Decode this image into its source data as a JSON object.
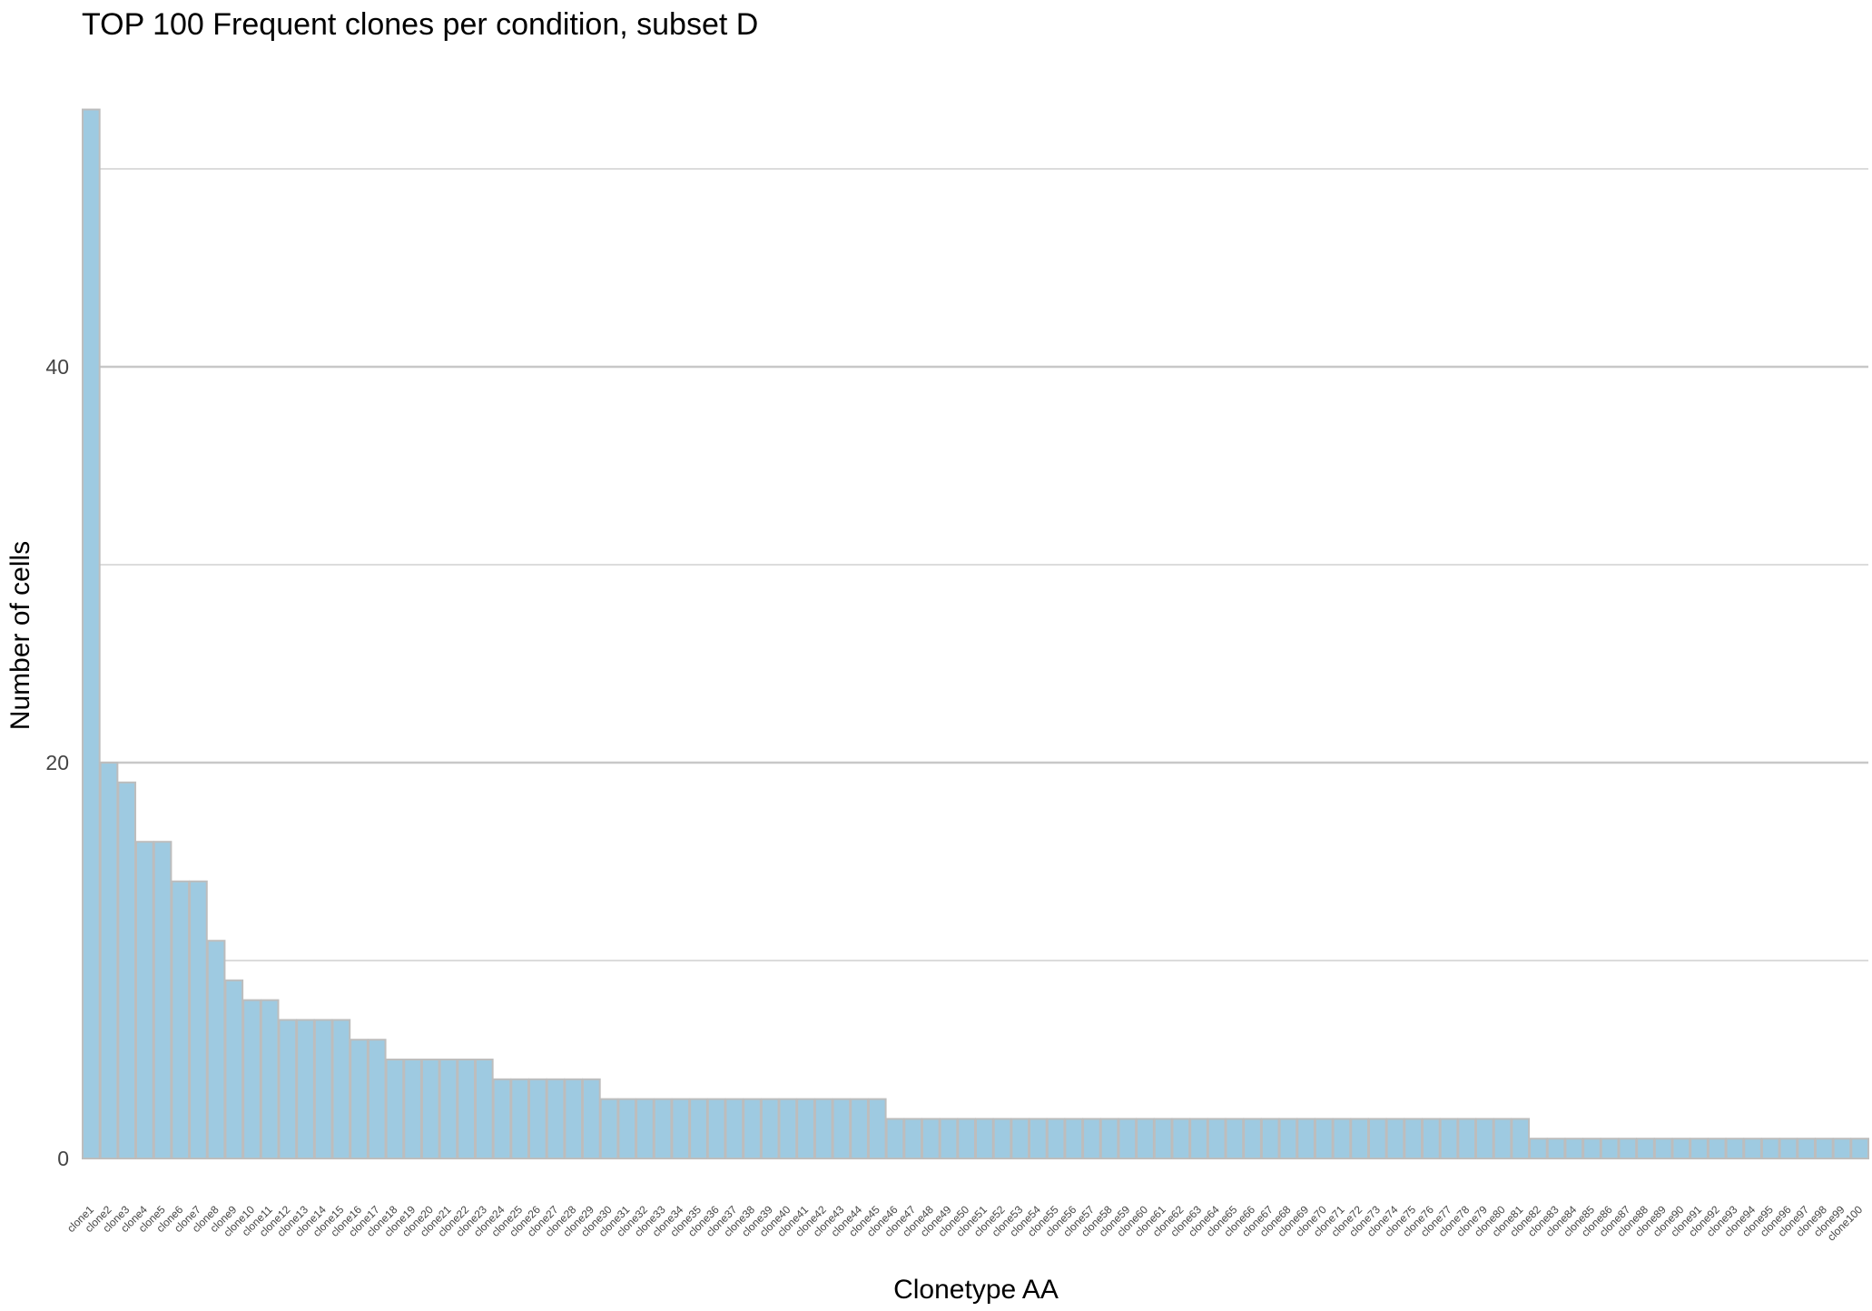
{
  "chart_data": {
    "type": "bar",
    "title": "TOP 100 Frequent clones per condition, subset D",
    "xlabel": "Clonetype AA",
    "ylabel": "Number of cells",
    "ylim": [
      0,
      54
    ],
    "yticks": [
      0,
      20,
      40
    ],
    "grid": true,
    "bar_fill": "#9ecae1",
    "bar_outline": "#bdbdbd",
    "grid_color": "#c8c8c8",
    "categories": [
      "clone1",
      "clone2",
      "clone3",
      "clone4",
      "clone5",
      "clone6",
      "clone7",
      "clone8",
      "clone9",
      "clone10",
      "clone11",
      "clone12",
      "clone13",
      "clone14",
      "clone15",
      "clone16",
      "clone17",
      "clone18",
      "clone19",
      "clone20",
      "clone21",
      "clone22",
      "clone23",
      "clone24",
      "clone25",
      "clone26",
      "clone27",
      "clone28",
      "clone29",
      "clone30",
      "clone31",
      "clone32",
      "clone33",
      "clone34",
      "clone35",
      "clone36",
      "clone37",
      "clone38",
      "clone39",
      "clone40",
      "clone41",
      "clone42",
      "clone43",
      "clone44",
      "clone45",
      "clone46",
      "clone47",
      "clone48",
      "clone49",
      "clone50",
      "clone51",
      "clone52",
      "clone53",
      "clone54",
      "clone55",
      "clone56",
      "clone57",
      "clone58",
      "clone59",
      "clone60",
      "clone61",
      "clone62",
      "clone63",
      "clone64",
      "clone65",
      "clone66",
      "clone67",
      "clone68",
      "clone69",
      "clone70",
      "clone71",
      "clone72",
      "clone73",
      "clone74",
      "clone75",
      "clone76",
      "clone77",
      "clone78",
      "clone79",
      "clone80",
      "clone81",
      "clone82",
      "clone83",
      "clone84",
      "clone85",
      "clone86",
      "clone87",
      "clone88",
      "clone89",
      "clone90",
      "clone91",
      "clone92",
      "clone93",
      "clone94",
      "clone95",
      "clone96",
      "clone97",
      "clone98",
      "clone99",
      "clone100"
    ],
    "values": [
      53,
      20,
      19,
      16,
      16,
      14,
      14,
      11,
      9,
      8,
      8,
      7,
      7,
      7,
      7,
      6,
      6,
      5,
      5,
      5,
      5,
      5,
      5,
      4,
      4,
      4,
      4,
      4,
      4,
      3,
      3,
      3,
      3,
      3,
      3,
      3,
      3,
      3,
      3,
      3,
      3,
      3,
      3,
      3,
      3,
      2,
      2,
      2,
      2,
      2,
      2,
      2,
      2,
      2,
      2,
      2,
      2,
      2,
      2,
      2,
      2,
      2,
      2,
      2,
      2,
      2,
      2,
      2,
      2,
      2,
      2,
      2,
      2,
      2,
      2,
      2,
      2,
      2,
      2,
      2,
      2,
      1,
      1,
      1,
      1,
      1,
      1,
      1,
      1,
      1,
      1,
      1,
      1,
      1,
      1,
      1,
      1,
      1,
      1,
      1
    ]
  }
}
